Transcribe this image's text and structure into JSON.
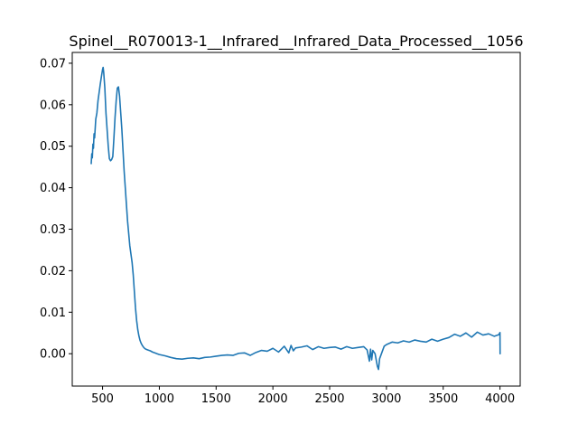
{
  "chart_data": {
    "type": "line",
    "title": "Spinel__R070013-1__Infrared__Infrared_Data_Processed__1056",
    "xlabel": "",
    "ylabel": "",
    "xlim": [
      233,
      4178
    ],
    "ylim": [
      -0.0078,
      0.0726
    ],
    "x_ticks": [
      {
        "value": 500,
        "label": "500"
      },
      {
        "value": 1000,
        "label": "1000"
      },
      {
        "value": 1500,
        "label": "1500"
      },
      {
        "value": 2000,
        "label": "2000"
      },
      {
        "value": 2500,
        "label": "2500"
      },
      {
        "value": 3000,
        "label": "3000"
      },
      {
        "value": 3500,
        "label": "3500"
      },
      {
        "value": 4000,
        "label": "4000"
      }
    ],
    "y_ticks": [
      {
        "value": 0.0,
        "label": "0.00"
      },
      {
        "value": 0.01,
        "label": "0.01"
      },
      {
        "value": 0.02,
        "label": "0.02"
      },
      {
        "value": 0.03,
        "label": "0.03"
      },
      {
        "value": 0.04,
        "label": "0.04"
      },
      {
        "value": 0.05,
        "label": "0.05"
      },
      {
        "value": 0.06,
        "label": "0.06"
      },
      {
        "value": 0.07,
        "label": "0.07"
      }
    ],
    "grid": false,
    "legend": "none",
    "series": [
      {
        "color": "#1f77b4",
        "x": [
          400,
          405,
          410,
          415,
          420,
          425,
          430,
          440,
          450,
          460,
          470,
          480,
          490,
          500,
          505,
          510,
          520,
          530,
          540,
          550,
          560,
          570,
          580,
          590,
          600,
          610,
          620,
          630,
          640,
          650,
          660,
          670,
          680,
          690,
          700,
          710,
          720,
          730,
          740,
          750,
          760,
          770,
          780,
          790,
          800,
          810,
          820,
          830,
          840,
          850,
          860,
          870,
          880,
          890,
          900,
          920,
          940,
          960,
          980,
          1000,
          1050,
          1100,
          1150,
          1200,
          1250,
          1300,
          1350,
          1400,
          1450,
          1500,
          1550,
          1600,
          1650,
          1700,
          1750,
          1800,
          1850,
          1900,
          1950,
          2000,
          2050,
          2100,
          2140,
          2160,
          2180,
          2200,
          2250,
          2300,
          2350,
          2400,
          2450,
          2500,
          2550,
          2600,
          2650,
          2700,
          2750,
          2800,
          2830,
          2850,
          2860,
          2870,
          2880,
          2900,
          2920,
          2930,
          2940,
          2960,
          2980,
          3000,
          3050,
          3100,
          3150,
          3200,
          3250,
          3300,
          3350,
          3400,
          3450,
          3500,
          3550,
          3600,
          3650,
          3700,
          3750,
          3800,
          3850,
          3900,
          3950,
          3990,
          4000,
          4001
        ],
        "y": [
          0.0458,
          0.0482,
          0.0472,
          0.0505,
          0.0495,
          0.053,
          0.052,
          0.0565,
          0.058,
          0.061,
          0.063,
          0.065,
          0.0668,
          0.0685,
          0.069,
          0.0678,
          0.064,
          0.058,
          0.054,
          0.05,
          0.047,
          0.0465,
          0.0468,
          0.0475,
          0.052,
          0.057,
          0.061,
          0.064,
          0.0643,
          0.062,
          0.058,
          0.054,
          0.049,
          0.044,
          0.04,
          0.036,
          0.032,
          0.029,
          0.026,
          0.024,
          0.022,
          0.019,
          0.015,
          0.011,
          0.008,
          0.0058,
          0.0043,
          0.0032,
          0.0025,
          0.002,
          0.0016,
          0.0013,
          0.0011,
          0.001,
          0.0009,
          0.0007,
          0.0004,
          0.0002,
          0.0,
          -0.0002,
          -0.0005,
          -0.0009,
          -0.0012,
          -0.0013,
          -0.0011,
          -0.001,
          -0.0012,
          -0.0009,
          -0.0008,
          -0.0006,
          -0.0004,
          -0.0003,
          -0.0004,
          0.0001,
          0.0002,
          -0.0004,
          0.0003,
          0.0008,
          0.0006,
          0.0013,
          0.0004,
          0.0018,
          0.0002,
          0.002,
          0.0007,
          0.0014,
          0.0016,
          0.0019,
          0.001,
          0.0017,
          0.0013,
          0.0015,
          0.0016,
          0.0011,
          0.0017,
          0.0013,
          0.0015,
          0.0017,
          0.0009,
          -0.0018,
          0.0011,
          -0.0015,
          0.0008,
          0.0,
          -0.003,
          -0.0038,
          -0.0012,
          0.0003,
          0.0018,
          0.0022,
          0.0028,
          0.0026,
          0.0031,
          0.0028,
          0.0033,
          0.003,
          0.0028,
          0.0035,
          0.003,
          0.0035,
          0.0039,
          0.0047,
          0.0042,
          0.005,
          0.004,
          0.0052,
          0.0045,
          0.0048,
          0.0042,
          0.0046,
          0.0051,
          0.0
        ]
      }
    ]
  }
}
